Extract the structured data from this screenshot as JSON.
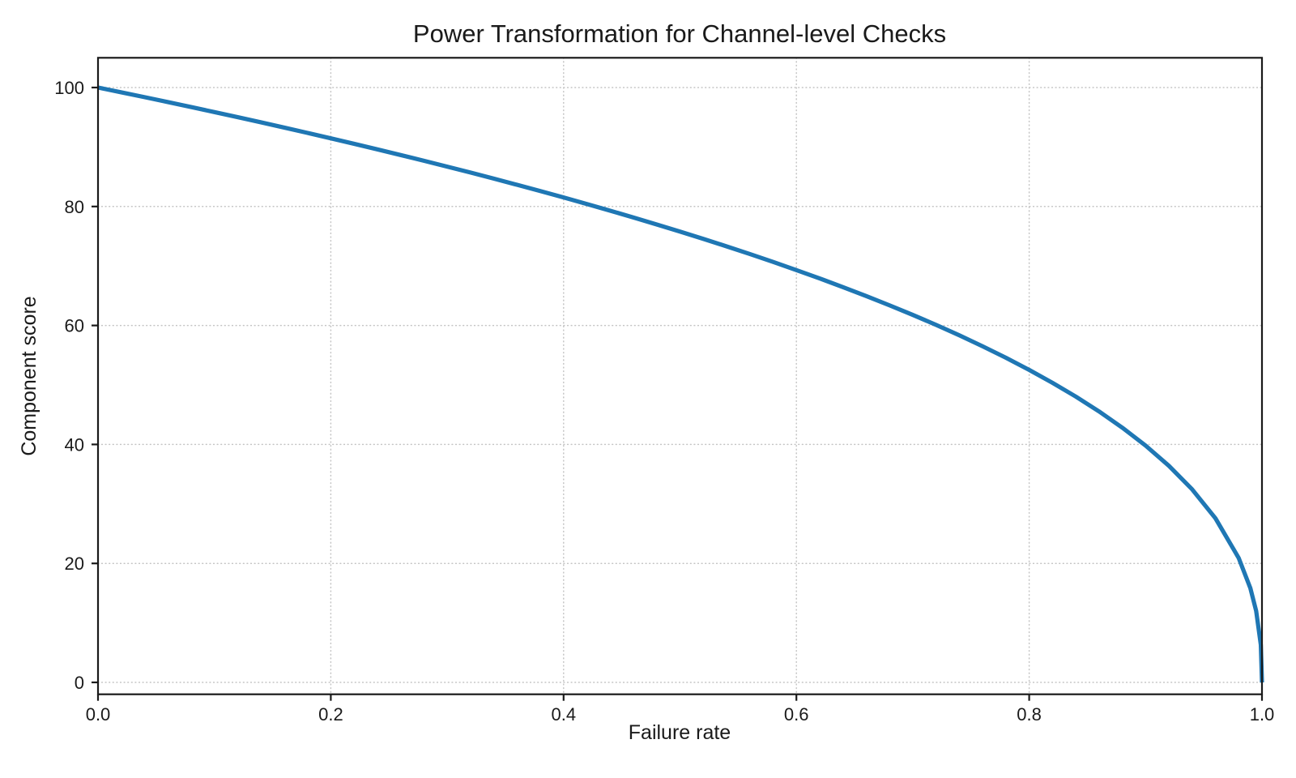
{
  "chart_data": {
    "type": "line",
    "title": "Power Transformation for Channel-level Checks",
    "xlabel": "Failure rate",
    "ylabel": "Component score",
    "xlim": [
      0.0,
      1.0
    ],
    "ylim": [
      -2,
      105
    ],
    "x_ticks": [
      0.0,
      0.2,
      0.4,
      0.6,
      0.8,
      1.0
    ],
    "x_tick_labels": [
      "0.0",
      "0.2",
      "0.4",
      "0.6",
      "0.8",
      "1.0"
    ],
    "y_ticks": [
      0,
      20,
      40,
      60,
      80,
      100
    ],
    "y_tick_labels": [
      "0",
      "20",
      "40",
      "60",
      "80",
      "100"
    ],
    "grid": {
      "visible": true,
      "linestyle": "dotted",
      "color": "#c4c4c4"
    },
    "axis_color": "#1a1a1a",
    "background_color": "#ffffff",
    "series": [
      {
        "name": "component-score-curve",
        "formula": "y = 100 * (1 - x)^0.4",
        "color": "#1f77b4",
        "line_width": 5.2,
        "x": [
          0.0,
          0.02,
          0.04,
          0.06,
          0.08,
          0.1,
          0.12,
          0.14,
          0.16,
          0.18,
          0.2,
          0.22,
          0.24,
          0.26,
          0.28,
          0.3,
          0.32,
          0.34,
          0.36,
          0.38,
          0.4,
          0.42,
          0.44,
          0.46,
          0.48,
          0.5,
          0.52,
          0.54,
          0.56,
          0.58,
          0.6,
          0.62,
          0.64,
          0.66,
          0.68,
          0.7,
          0.72,
          0.74,
          0.76,
          0.78,
          0.8,
          0.82,
          0.84,
          0.86,
          0.88,
          0.9,
          0.92,
          0.94,
          0.96,
          0.98,
          0.99,
          0.995,
          0.999,
          1.0
        ],
        "y": [
          100.0,
          99.19,
          98.38,
          97.56,
          96.72,
          95.87,
          95.02,
          94.15,
          93.26,
          92.37,
          91.46,
          90.54,
          89.6,
          88.65,
          87.69,
          86.7,
          85.71,
          84.69,
          83.65,
          82.6,
          81.52,
          80.42,
          79.3,
          78.15,
          76.98,
          75.79,
          74.56,
          73.3,
          72.01,
          70.68,
          69.31,
          67.91,
          66.45,
          64.95,
          63.39,
          61.78,
          60.1,
          58.34,
          56.5,
          54.57,
          52.53,
          50.36,
          48.05,
          45.55,
          42.82,
          39.81,
          36.41,
          32.45,
          27.59,
          20.91,
          15.85,
          12.01,
          6.31,
          0.0
        ]
      }
    ]
  }
}
